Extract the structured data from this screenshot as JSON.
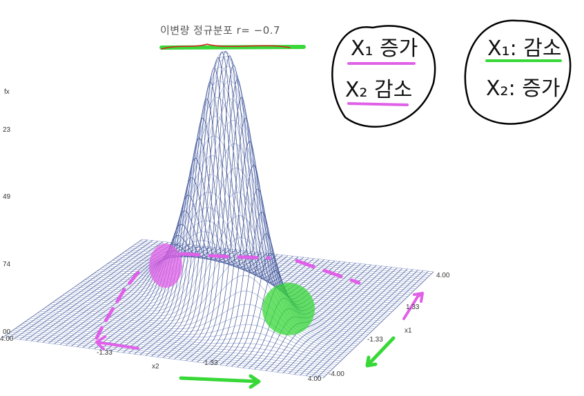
{
  "title": "이변량 정규분포 r= −0.7",
  "axes": {
    "z_label": "fx",
    "z_ticks": [
      "23",
      "49",
      "74",
      "00"
    ],
    "x2_label": "x2",
    "x2_ticks": [
      "4.00",
      "-1.33",
      "1.33",
      "4.00"
    ],
    "x1_label": "x1",
    "x1_ticks": [
      "-4.00",
      "-1.33",
      "1.33",
      "4.00"
    ]
  },
  "notes": {
    "left_line1": "X₁ 증가",
    "left_line2": "X₂ 감소",
    "right_line1": "X₁: 감소",
    "right_line2": "X₂: 증가"
  },
  "colors": {
    "mesh": "#3d4f8f",
    "mesh_light": "#8fa0d0",
    "pink": "#e060e8",
    "green": "#38d838",
    "red": "#d82020"
  },
  "chart_data": {
    "type": "surface",
    "title": "이변량 정규분포 r= −0.7",
    "correlation": -0.7,
    "x1_range": [
      -4.0,
      4.0
    ],
    "x2_range": [
      -4.0,
      4.0
    ],
    "zlabel": "fx"
  }
}
